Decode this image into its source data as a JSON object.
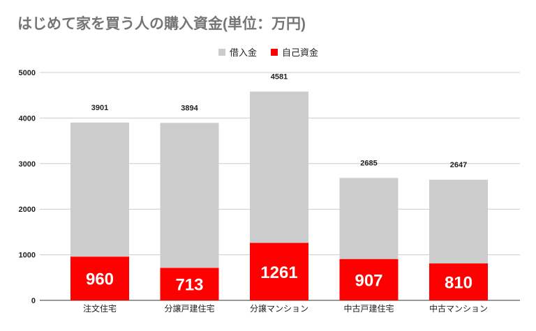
{
  "chart_data": {
    "type": "bar",
    "stacked": true,
    "title": "はじめて家を買う人の購入資金(単位：万円)",
    "xlabel": "",
    "ylabel": "",
    "ylim": [
      0,
      5000
    ],
    "yticks": [
      0,
      1000,
      2000,
      3000,
      4000,
      5000
    ],
    "grid": true,
    "legend_position": "top",
    "categories": [
      "注文住宅",
      "分譲戸建住宅",
      "分譲マンション",
      "中古戸建住宅",
      "中古マンション"
    ],
    "series": [
      {
        "name": "自己資金",
        "color": "#ff0000",
        "values": [
          960,
          713,
          1261,
          907,
          810
        ]
      },
      {
        "name": "借入金",
        "color": "#cccccc",
        "values": [
          2941,
          3181,
          3320,
          1778,
          1837
        ]
      }
    ],
    "totals": [
      3901,
      3894,
      4581,
      2685,
      2647
    ]
  }
}
